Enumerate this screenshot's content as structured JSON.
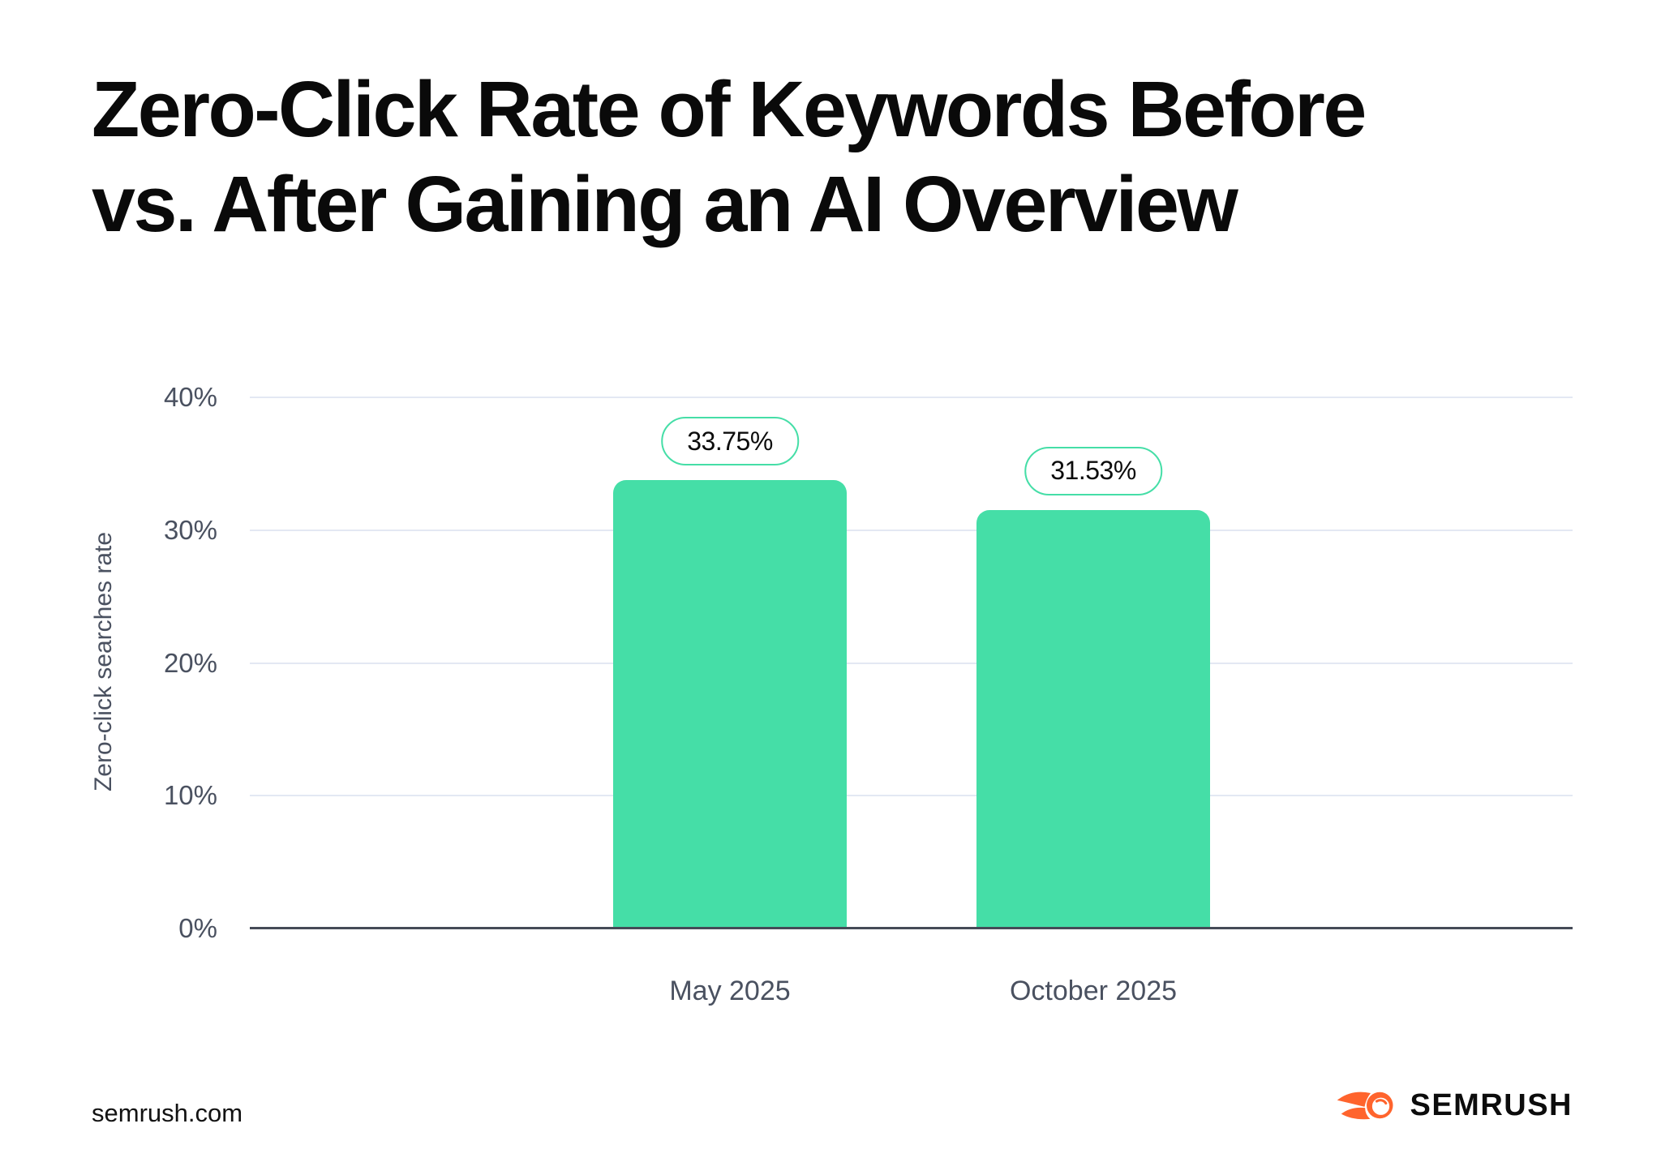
{
  "header": {
    "title_lines": [
      "Zero-Click Rate of Keywords Before",
      "vs. After Gaining an AI Overview"
    ]
  },
  "chart_data": {
    "type": "bar",
    "title": "Zero-Click Rate of Keywords Before vs. After Gaining an AI Overview",
    "categories": [
      "May 2025",
      "October 2025"
    ],
    "values": [
      33.75,
      31.53
    ],
    "data_labels": [
      "33.75%",
      "31.53%"
    ],
    "xlabel": "",
    "ylabel": "Zero-click searches rate",
    "ylim": [
      0,
      40
    ],
    "yticks": [
      {
        "value": 0,
        "label": "0%"
      },
      {
        "value": 10,
        "label": "10%"
      },
      {
        "value": 20,
        "label": "20%"
      },
      {
        "value": 30,
        "label": "30%"
      },
      {
        "value": 40,
        "label": "40%"
      }
    ],
    "grid": "horizontal",
    "legend": "none"
  },
  "footer": {
    "source": "semrush.com",
    "brand": "SEMRUSH"
  },
  "colors": {
    "bar_green": "#45dea7",
    "badge_border": "#45dea7",
    "gridline": "#e3e8f3",
    "axis_line": "#454b57",
    "tick_text": "#4a5160",
    "title": "#0a0a0a",
    "logo_orange": "#ff642d"
  }
}
